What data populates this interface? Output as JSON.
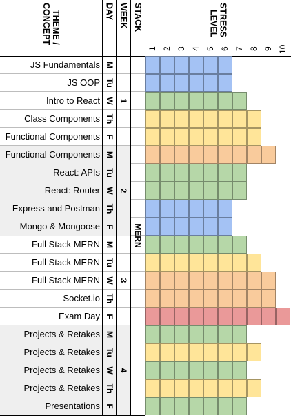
{
  "headers": {
    "theme": "THEME /\nCONCEPT",
    "day": "DAY",
    "week": "WEEK",
    "stack": "STACK",
    "stress": "STRESS\nLEVEL"
  },
  "scale": [
    "1",
    "2",
    "3",
    "4",
    "5",
    "6",
    "7",
    "8",
    "9",
    "10"
  ],
  "colors": {
    "blue": "#a4c2f4",
    "green": "#b6d7a8",
    "yellow": "#ffe599",
    "orange": "#f9cb9c",
    "red": "#ea9999",
    "shaded_row": "#efefef"
  },
  "rows": [
    {
      "theme": "JS Fundamentals",
      "day": "M",
      "stress": 6,
      "color": "blue"
    },
    {
      "theme": "JS OOP",
      "day": "Tu",
      "stress": 6,
      "color": "blue"
    },
    {
      "theme": "Intro to React",
      "day": "W",
      "stress": 7,
      "color": "green"
    },
    {
      "theme": "Class Components",
      "day": "Th",
      "stress": 8,
      "color": "yellow"
    },
    {
      "theme": "Functional Components",
      "day": "F",
      "stress": 8,
      "color": "yellow"
    },
    {
      "theme": "Functional Components",
      "day": "M",
      "stress": 9,
      "color": "orange"
    },
    {
      "theme": "React: APIs",
      "day": "Tu",
      "stress": 7,
      "color": "green"
    },
    {
      "theme": "React: Router",
      "day": "W",
      "stress": 7,
      "color": "green"
    },
    {
      "theme": "Express and Postman",
      "day": "Th",
      "stress": 6,
      "color": "blue"
    },
    {
      "theme": "Mongo & Mongoose",
      "day": "F",
      "stress": 6,
      "color": "blue"
    },
    {
      "theme": "Full Stack MERN",
      "day": "M",
      "stress": 7,
      "color": "green"
    },
    {
      "theme": "Full Stack MERN",
      "day": "Tu",
      "stress": 8,
      "color": "yellow"
    },
    {
      "theme": "Full Stack MERN",
      "day": "W",
      "stress": 9,
      "color": "orange"
    },
    {
      "theme": "Socket.io",
      "day": "Th",
      "stress": 9,
      "color": "orange"
    },
    {
      "theme": "Exam Day",
      "day": "F",
      "stress": 10,
      "color": "red"
    },
    {
      "theme": "Projects & Retakes",
      "day": "M",
      "stress": 7,
      "color": "green"
    },
    {
      "theme": "Projects & Retakes",
      "day": "Tu",
      "stress": 8,
      "color": "yellow"
    },
    {
      "theme": "Projects & Retakes",
      "day": "W",
      "stress": 7,
      "color": "green"
    },
    {
      "theme": "Projects & Retakes",
      "day": "Th",
      "stress": 8,
      "color": "yellow"
    },
    {
      "theme": "Presentations",
      "day": "F",
      "stress": 7,
      "color": "green"
    }
  ],
  "weeks": [
    {
      "label": "1",
      "shaded": false
    },
    {
      "label": "2",
      "shaded": true
    },
    {
      "label": "3",
      "shaded": false
    },
    {
      "label": "4",
      "shaded": true
    }
  ],
  "stack": {
    "label": "MERN"
  }
}
